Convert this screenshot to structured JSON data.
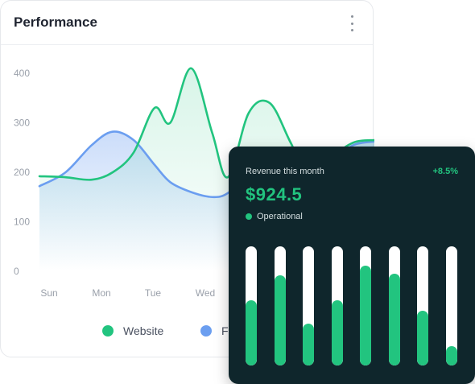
{
  "performance_card": {
    "title": "Performance",
    "legend": [
      {
        "label": "Website",
        "color": "#22c47f"
      },
      {
        "label": "Fa",
        "color": "#6b9ef0"
      }
    ]
  },
  "chart_data": {
    "type": "area",
    "categories": [
      "Sun",
      "Mon",
      "Tue",
      "Wed"
    ],
    "y_ticks": [
      400,
      300,
      200,
      100,
      0
    ],
    "ylim": [
      0,
      400
    ],
    "series": [
      {
        "name": "Website",
        "color": "#22c47f",
        "x": [
          0,
          0.5,
          1,
          1.4,
          1.8,
          2.2,
          2.5,
          2.9,
          3.3,
          3.6,
          4.0,
          4.4,
          4.8,
          5.2,
          5.6,
          6.0,
          6.4
        ],
        "values": [
          192,
          190,
          185,
          200,
          240,
          330,
          300,
          410,
          280,
          190,
          320,
          340,
          260,
          180,
          230,
          260,
          265
        ]
      },
      {
        "name": "Fa",
        "color": "#6b9ef0",
        "x": [
          0,
          0.5,
          1,
          1.4,
          1.8,
          2.2,
          2.5,
          2.9,
          3.3,
          3.6,
          4.0,
          4.4,
          4.8,
          5.2,
          5.6,
          6.0,
          6.4
        ],
        "values": [
          172,
          200,
          255,
          282,
          265,
          215,
          180,
          160,
          150,
          158,
          200,
          240,
          235,
          210,
          225,
          255,
          262
        ]
      }
    ]
  },
  "revenue_card": {
    "label": "Revenue this month",
    "change": "+8.5%",
    "amount": "$924.5",
    "status": "Operational",
    "bar_levels": [
      0.55,
      0.76,
      0.35,
      0.55,
      0.84,
      0.77,
      0.46,
      0.16
    ],
    "accent_color": "#22c47f",
    "background_color": "#0f262c"
  }
}
